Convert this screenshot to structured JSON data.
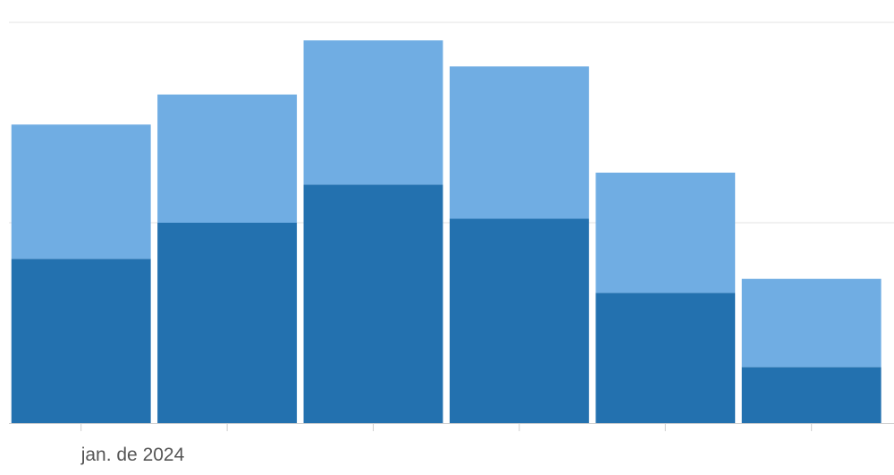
{
  "chart_data": {
    "type": "bar",
    "stacked": true,
    "categories": [
      "jan. de 2024",
      "",
      "",
      "",
      "",
      ""
    ],
    "series": [
      {
        "values": [
          41,
          50,
          59.5,
          51,
          32.5,
          14
        ],
        "color": "#2371af"
      },
      {
        "values": [
          33.5,
          32,
          36,
          38,
          30,
          22
        ],
        "color": "#70ade3"
      }
    ],
    "ylim": [
      0,
      100
    ],
    "grid": true,
    "legend": "none",
    "title": "",
    "xlabel": "",
    "ylabel": ""
  }
}
